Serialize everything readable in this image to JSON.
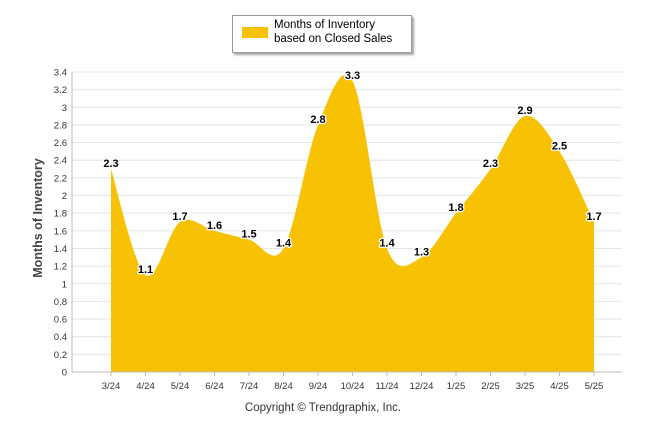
{
  "chart_data": {
    "type": "area",
    "categories": [
      "3/24",
      "4/24",
      "5/24",
      "6/24",
      "7/24",
      "8/24",
      "9/24",
      "10/24",
      "11/24",
      "12/24",
      "1/25",
      "2/25",
      "3/25",
      "4/25",
      "5/25"
    ],
    "series": [
      {
        "name": "Months of Inventory based on Closed Sales",
        "values": [
          2.3,
          1.1,
          1.7,
          1.6,
          1.5,
          1.4,
          2.8,
          3.3,
          1.4,
          1.3,
          1.8,
          2.3,
          2.9,
          2.5,
          1.7
        ]
      }
    ],
    "data_labels": [
      "2.3",
      "1.1",
      "1.7",
      "1.6",
      "1.5",
      "1.4",
      "2.8",
      "3.3",
      "1.4",
      "1.3",
      "1.8",
      "2.3",
      "2.9",
      "2.5",
      "1.7"
    ],
    "ylabel": "Months of Inventory",
    "xlabel": "",
    "yticks": [
      "0",
      "0.2",
      "0.4",
      "0.6",
      "0.8",
      "1",
      "1.2",
      "1.4",
      "1.6",
      "1.8",
      "2",
      "2.2",
      "2.4",
      "2.6",
      "2.8",
      "3",
      "3.2",
      "3.4"
    ],
    "ylim": [
      0,
      3.4
    ],
    "grid": true,
    "legend_placement": "top-center",
    "fill_color": "#F7C204",
    "footer": "Copyright © Trendgraphix, Inc."
  }
}
